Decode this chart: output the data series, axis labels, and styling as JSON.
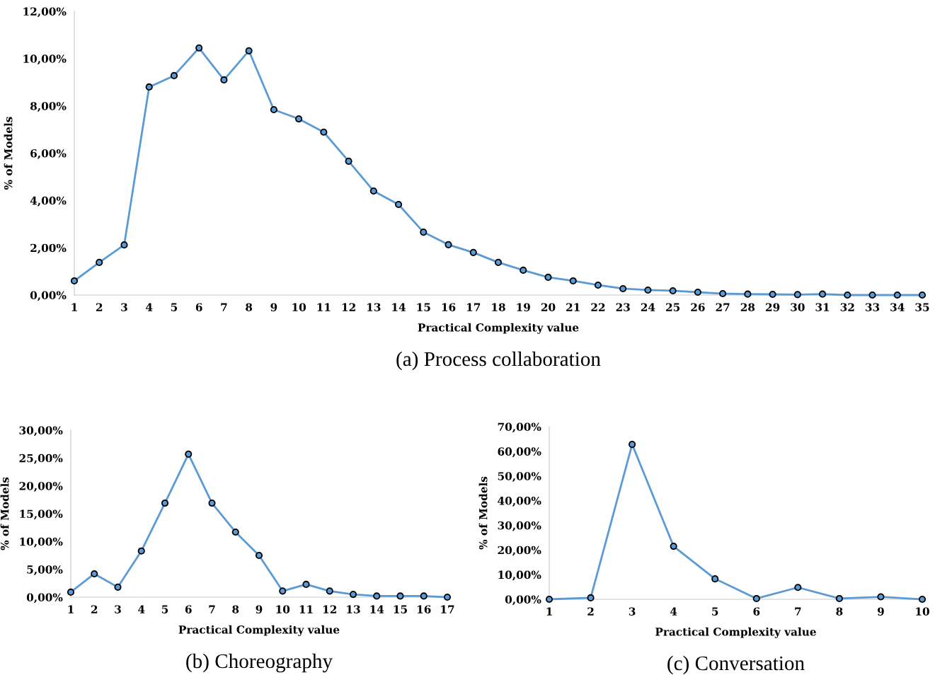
{
  "chart_data": [
    {
      "type": "line",
      "title": "(a) Process collaboration",
      "xlabel": "Practical Complexity value",
      "ylabel": "% of Models",
      "categories": [
        "1",
        "2",
        "3",
        "4",
        "5",
        "6",
        "7",
        "8",
        "9",
        "10",
        "11",
        "12",
        "13",
        "14",
        "15",
        "16",
        "17",
        "18",
        "19",
        "20",
        "21",
        "22",
        "23",
        "24",
        "25",
        "26",
        "27",
        "28",
        "29",
        "30",
        "31",
        "32",
        "33",
        "34",
        "35"
      ],
      "series": [
        {
          "color": "#5b9bd5",
          "values": [
            0.6,
            1.38,
            2.12,
            8.8,
            9.28,
            10.45,
            9.1,
            10.33,
            7.84,
            7.45,
            6.89,
            5.66,
            4.4,
            3.83,
            2.66,
            2.13,
            1.8,
            1.38,
            1.05,
            0.75,
            0.6,
            0.42,
            0.27,
            0.21,
            0.18,
            0.12,
            0.06,
            0.04,
            0.03,
            0.02,
            0.04,
            0.0,
            0.0,
            0.0,
            0.0
          ]
        }
      ],
      "ylim": [
        0,
        12
      ],
      "yticks": [
        {
          "value": 0,
          "label": "0,00%"
        },
        {
          "value": 2,
          "label": "2,00%"
        },
        {
          "value": 4,
          "label": "4,00%"
        },
        {
          "value": 6,
          "label": "6,00%"
        },
        {
          "value": 8,
          "label": "8,00%"
        },
        {
          "value": 10,
          "label": "10,00%"
        },
        {
          "value": 12,
          "label": "12,00%"
        }
      ],
      "grid": false,
      "legend": false,
      "marker": "circle",
      "line_style": "solid"
    },
    {
      "type": "line",
      "title": "(b) Choreography",
      "xlabel": "Practical Complexity value",
      "ylabel": "% of Models",
      "categories": [
        "1",
        "2",
        "3",
        "4",
        "5",
        "6",
        "7",
        "8",
        "9",
        "10",
        "11",
        "12",
        "13",
        "14",
        "15",
        "16",
        "17"
      ],
      "series": [
        {
          "color": "#5b9bd5",
          "values": [
            0.9,
            4.2,
            1.8,
            8.3,
            16.9,
            25.7,
            16.9,
            11.7,
            7.5,
            1.1,
            2.3,
            1.1,
            0.5,
            0.2,
            0.2,
            0.2,
            0.0
          ]
        }
      ],
      "ylim": [
        0,
        30
      ],
      "yticks": [
        {
          "value": 0,
          "label": "0,00%"
        },
        {
          "value": 5,
          "label": "5,00%"
        },
        {
          "value": 10,
          "label": "10,00%"
        },
        {
          "value": 15,
          "label": "15,00%"
        },
        {
          "value": 20,
          "label": "20,00%"
        },
        {
          "value": 25,
          "label": "25,00%"
        },
        {
          "value": 30,
          "label": "30,00%"
        }
      ],
      "grid": false,
      "legend": false,
      "marker": "circle",
      "line_style": "solid"
    },
    {
      "type": "line",
      "title": "(c) Conversation",
      "xlabel": "Practical Complexity value",
      "ylabel": "% of Models",
      "categories": [
        "1",
        "2",
        "3",
        "4",
        "5",
        "6",
        "7",
        "8",
        "9",
        "10"
      ],
      "series": [
        {
          "color": "#5b9bd5",
          "values": [
            0.0,
            0.6,
            62.8,
            21.5,
            8.3,
            0.3,
            4.8,
            0.3,
            1.0,
            0.0
          ]
        }
      ],
      "ylim": [
        0,
        70
      ],
      "yticks": [
        {
          "value": 0,
          "label": "0,00%"
        },
        {
          "value": 10,
          "label": "10,00%"
        },
        {
          "value": 20,
          "label": "20,00%"
        },
        {
          "value": 30,
          "label": "30,00%"
        },
        {
          "value": 40,
          "label": "40,00%"
        },
        {
          "value": 50,
          "label": "50,00%"
        },
        {
          "value": 60,
          "label": "60,00%"
        },
        {
          "value": 70,
          "label": "70,00%"
        }
      ],
      "grid": false,
      "legend": false,
      "marker": "circle",
      "line_style": "solid"
    }
  ]
}
